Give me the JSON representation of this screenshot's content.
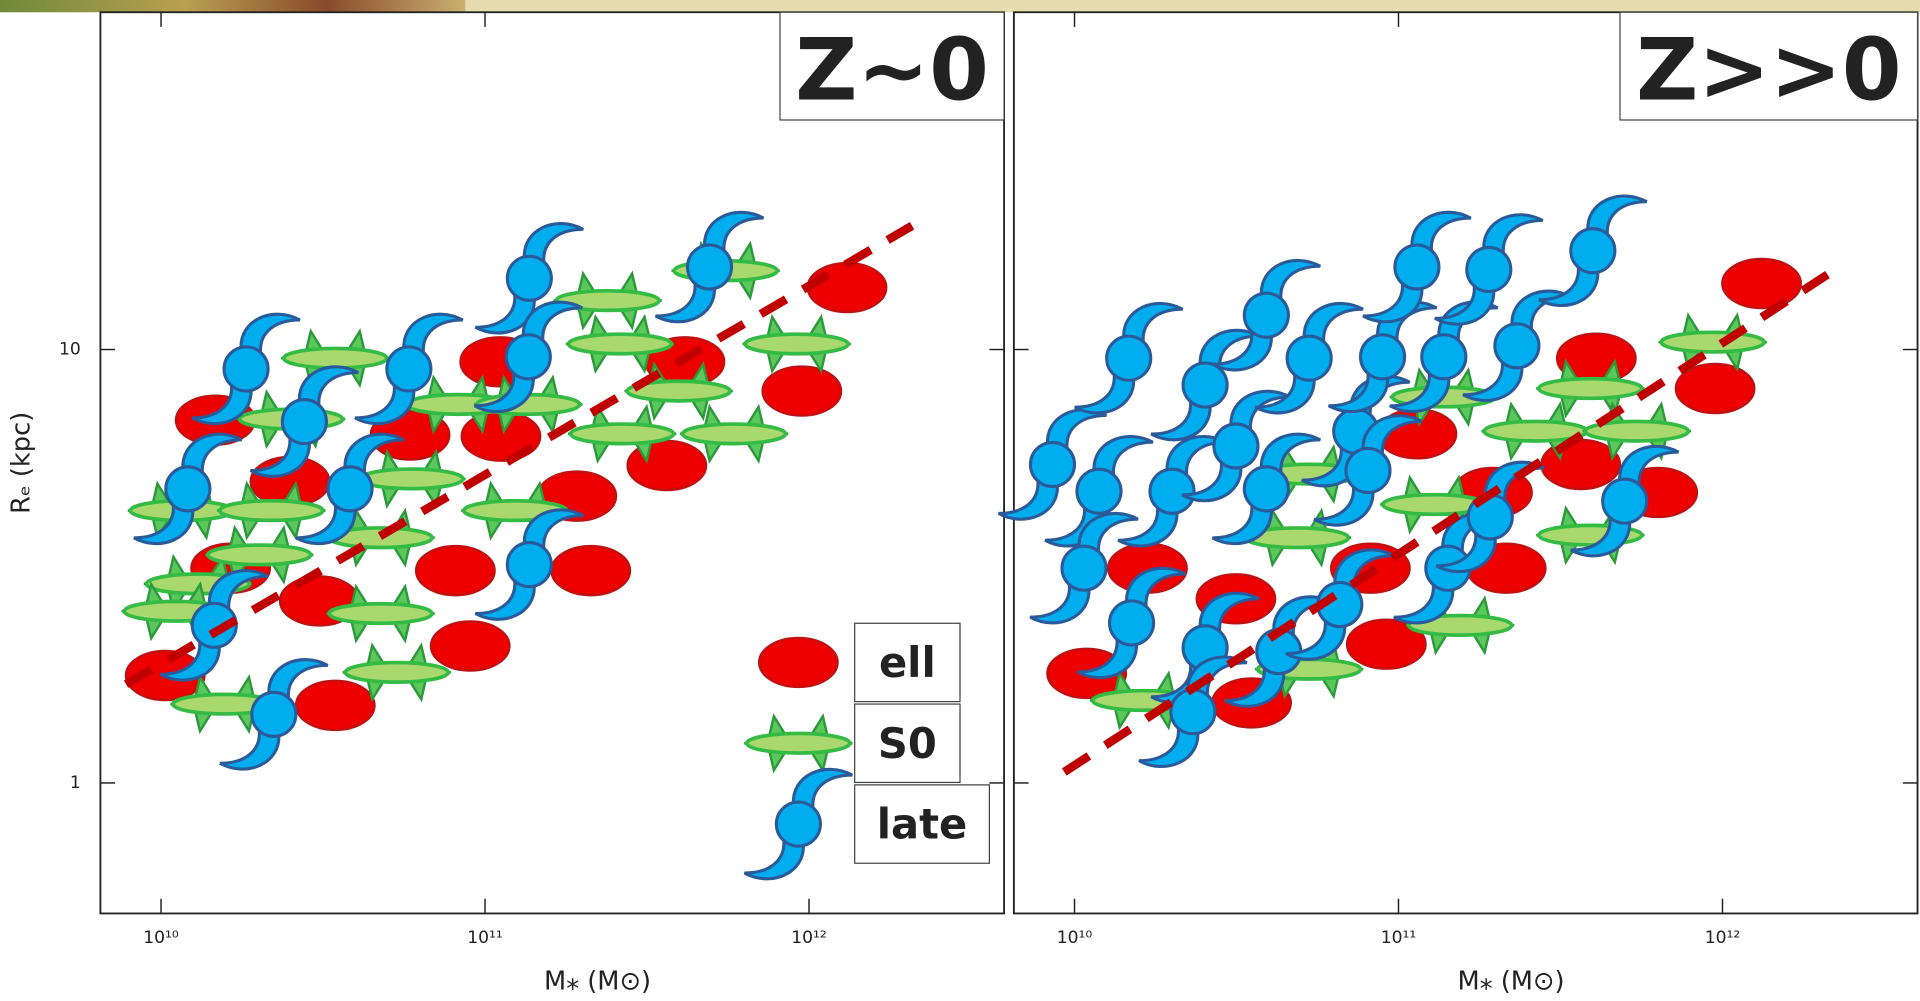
{
  "chart_data": [
    {
      "type": "scatter",
      "title": "Z~0",
      "xlabel": "M⁎ (M⊙)",
      "ylabel": "Rₑ (kpc)",
      "log_x": true,
      "log_y": true,
      "xlim": [
        6500000000.0,
        4000000000000.0
      ],
      "ylim": [
        0.5,
        60
      ],
      "xticks": [
        {
          "value": 10000000000.0,
          "label": "10¹⁰"
        },
        {
          "value": 100000000000.0,
          "label": "10¹¹"
        },
        {
          "value": 1000000000000.0,
          "label": "10¹²"
        }
      ],
      "yticks": [
        1,
        10
      ],
      "legend": "lower right",
      "series": [
        {
          "name": "ell",
          "marker": "ell",
          "color": "#ee0000",
          "x": [
            14700000000.0,
            25000000000.0,
            16400000000.0,
            30800000000.0,
            10300000000.0,
            34500000000.0,
            58700000000.0,
            112000000000.0,
            111000000000.0,
            81000000000.0,
            90000000000.0,
            192000000000.0,
            212000000000.0,
            364000000000.0,
            414000000000.0,
            950000000000.0,
            1310000000000.0
          ],
          "values": [
            6.87,
            4.96,
            3.13,
            2.63,
            1.77,
            1.51,
            6.35,
            6.31,
            9.37,
            3.09,
            2.07,
            4.59,
            3.09,
            5.4,
            9.37,
            8.02,
            13.9
          ]
        },
        {
          "name": "S0",
          "marker": "s0",
          "color": "#a8d86e",
          "x": [
            34500000000.0,
            25200000000.0,
            11600000000.0,
            21900000000.0,
            13000000000.0,
            20100000000.0,
            47600000000.0,
            59300000000.0,
            47600000000.0,
            53400000000.0,
            15700000000.0,
            11100000000.0,
            82500000000.0,
            136000000000.0,
            124000000000.0,
            239000000000.0,
            261000000000.0,
            265000000000.0,
            396000000000.0,
            587000000000.0,
            916000000000.0,
            553000000000.0
          ],
          "values": [
            9.55,
            6.91,
            4.25,
            4.25,
            2.88,
            3.36,
            3.68,
            5.03,
            2.46,
            1.8,
            1.52,
            2.49,
            7.47,
            7.47,
            4.25,
            12.97,
            10.3,
            6.39,
            8.02,
            6.39,
            10.3,
            15.2
          ]
        },
        {
          "name": "late",
          "marker": "late",
          "color": "#00aeef",
          "x": [
            18300000000.0,
            38300000000.0,
            58200000000.0,
            137000000000.0,
            136000000000.0,
            137000000000.0,
            14600000000.0,
            22300000000.0,
            493000000000.0,
            12100000000.0,
            27700000000.0
          ],
          "values": [
            9.02,
            4.77,
            9.02,
            14.6,
            9.62,
            3.19,
            2.31,
            1.44,
            15.5,
            4.77,
            6.82
          ]
        }
      ],
      "fit": {
        "color": "#c00000",
        "x": [
          7800000000.0,
          2080000000000.0
        ],
        "values": [
          1.69,
          19.3
        ]
      }
    },
    {
      "type": "scatter",
      "title": "Z>>0",
      "xlabel": "M⁎ (M⊙)",
      "log_x": true,
      "log_y": true,
      "xlim": [
        6500000000.0,
        4000000000000.0
      ],
      "ylim": [
        0.5,
        60
      ],
      "xticks": [
        {
          "value": 10000000000.0,
          "label": "10¹⁰"
        },
        {
          "value": 100000000000.0,
          "label": "10¹¹"
        },
        {
          "value": 1000000000000.0,
          "label": "10¹²"
        }
      ],
      "yticks": [
        1,
        10
      ],
      "ytick_labels": false,
      "series": [
        {
          "marker": "ell",
          "color": "#ee0000",
          "x": [
            10900000000.0,
            16800000000.0,
            31500000000.0,
            35200000000.0,
            81900000000.0,
            91700000000.0,
            114000000000.0,
            195000000000.0,
            215000000000.0,
            365000000000.0,
            408000000000.0,
            631000000000.0,
            949000000000.0,
            1320000000000.0
          ],
          "values": [
            1.79,
            3.13,
            2.66,
            1.53,
            3.13,
            2.09,
            6.39,
            4.68,
            3.13,
            5.43,
            9.55,
            4.68,
            8.13,
            14.2
          ]
        },
        {
          "marker": "s0",
          "color": "#a8d86e",
          "x": [
            16400000000.0,
            53000000000.0,
            48600000000.0,
            138000000000.0,
            155000000000.0,
            129000000000.0,
            265000000000.0,
            391000000000.0,
            544000000000.0,
            391000000000.0,
            933000000000.0,
            53000000000.0
          ],
          "values": [
            1.55,
            1.83,
            3.68,
            7.77,
            2.31,
            4.39,
            6.48,
            8.13,
            6.48,
            3.73,
            10.4,
            5.16
          ]
        },
        {
          "marker": "late",
          "color": "#00aeef",
          "x": [
            8550000000.0,
            11900000000.0,
            10700000000.0,
            15000000000.0,
            14700000000.0,
            20000000000.0,
            25300000000.0,
            23200000000.0,
            25300000000.0,
            31500000000.0,
            39100000000.0,
            39100000000.0,
            42700000000.0,
            53000000000.0,
            65900000000.0,
            73800000000.0,
            80500000000.0,
            89300000000.0,
            114000000000.0,
            138000000000.0,
            142000000000.0,
            192000000000.0,
            190000000000.0,
            232000000000.0,
            398000000000.0,
            499000000000.0
          ],
          "values": [
            5.43,
            4.71,
            3.13,
            2.34,
            9.55,
            4.71,
            2.05,
            1.46,
            8.28,
            5.99,
            12.0,
            4.77,
            2.01,
            9.55,
            2.58,
            6.48,
            5.26,
            9.62,
            15.5,
            9.62,
            3.13,
            4.11,
            15.3,
            10.2,
            16.9,
            4.47
          ]
        }
      ],
      "fit": {
        "color": "#c00000",
        "x": [
          9300000000.0,
          2320000000000.0
        ],
        "values": [
          1.06,
          15.6
        ]
      }
    }
  ]
}
